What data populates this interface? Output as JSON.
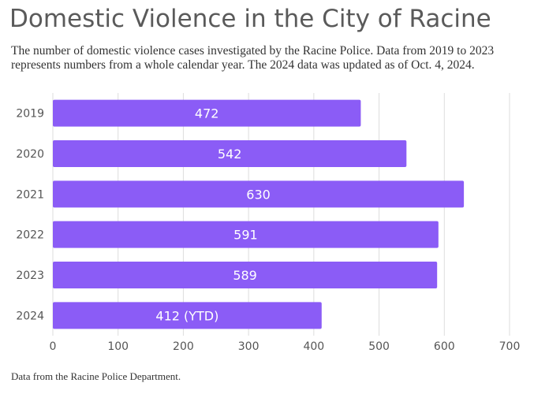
{
  "title": "Domestic Violence in the City of Racine",
  "subtitle": "The number of domestic violence cases investigated by the Racine Police. Data from 2019 to 2023 represents numbers from a whole calendar year. The 2024 data was updated as of Oct. 4, 2024.",
  "footer": "Data from the Racine Police Department.",
  "colors": {
    "bar": "#8b5cf6",
    "grid": "#dddddd",
    "text": "#555555"
  },
  "chart_data": {
    "type": "bar",
    "orientation": "horizontal",
    "categories": [
      "2019",
      "2020",
      "2021",
      "2022",
      "2023",
      "2024"
    ],
    "values": [
      472,
      542,
      630,
      591,
      589,
      412
    ],
    "data_labels": [
      "472",
      "542",
      "630",
      "591",
      "589",
      "412 (YTD)"
    ],
    "xlim": [
      0,
      700
    ],
    "xticks": [
      0,
      100,
      200,
      300,
      400,
      500,
      600,
      700
    ],
    "grid": true
  }
}
